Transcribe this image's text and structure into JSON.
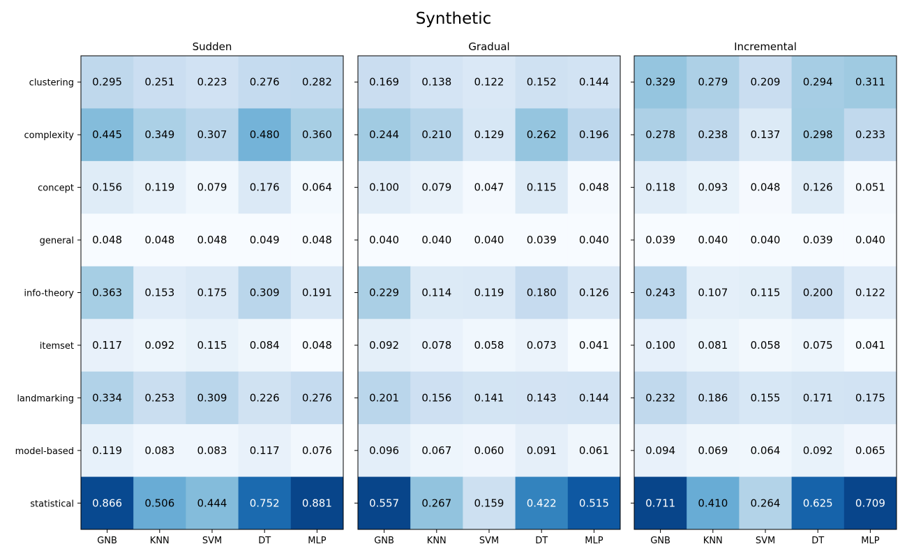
{
  "chart_data": {
    "type": "heatmap",
    "title": "Synthetic",
    "rows": [
      "clustering",
      "complexity",
      "concept",
      "general",
      "info-theory",
      "itemset",
      "landmarking",
      "model-based",
      "statistical"
    ],
    "columns": [
      "GNB",
      "KNN",
      "SVM",
      "DT",
      "MLP"
    ],
    "colormap": "Blues",
    "panels": [
      {
        "title": "Sudden",
        "values": [
          [
            0.295,
            0.251,
            0.223,
            0.276,
            0.282
          ],
          [
            0.445,
            0.349,
            0.307,
            0.48,
            0.36
          ],
          [
            0.156,
            0.119,
            0.079,
            0.176,
            0.064
          ],
          [
            0.048,
            0.048,
            0.048,
            0.049,
            0.048
          ],
          [
            0.363,
            0.153,
            0.175,
            0.309,
            0.191
          ],
          [
            0.117,
            0.092,
            0.115,
            0.084,
            0.048
          ],
          [
            0.334,
            0.253,
            0.309,
            0.226,
            0.276
          ],
          [
            0.119,
            0.083,
            0.083,
            0.117,
            0.076
          ],
          [
            0.866,
            0.506,
            0.444,
            0.752,
            0.881
          ]
        ]
      },
      {
        "title": "Gradual",
        "values": [
          [
            0.169,
            0.138,
            0.122,
            0.152,
            0.144
          ],
          [
            0.244,
            0.21,
            0.129,
            0.262,
            0.196
          ],
          [
            0.1,
            0.079,
            0.047,
            0.115,
            0.048
          ],
          [
            0.04,
            0.04,
            0.04,
            0.039,
            0.04
          ],
          [
            0.229,
            0.114,
            0.119,
            0.18,
            0.126
          ],
          [
            0.092,
            0.078,
            0.058,
            0.073,
            0.041
          ],
          [
            0.201,
            0.156,
            0.141,
            0.143,
            0.144
          ],
          [
            0.096,
            0.067,
            0.06,
            0.091,
            0.061
          ],
          [
            0.557,
            0.267,
            0.159,
            0.422,
            0.515
          ]
        ]
      },
      {
        "title": "Incremental",
        "values": [
          [
            0.329,
            0.279,
            0.209,
            0.294,
            0.311
          ],
          [
            0.278,
            0.238,
            0.137,
            0.298,
            0.233
          ],
          [
            0.118,
            0.093,
            0.048,
            0.126,
            0.051
          ],
          [
            0.039,
            0.04,
            0.04,
            0.039,
            0.04
          ],
          [
            0.243,
            0.107,
            0.115,
            0.2,
            0.122
          ],
          [
            0.1,
            0.081,
            0.058,
            0.075,
            0.041
          ],
          [
            0.232,
            0.186,
            0.155,
            0.171,
            0.175
          ],
          [
            0.094,
            0.069,
            0.064,
            0.092,
            0.065
          ],
          [
            0.711,
            0.41,
            0.264,
            0.625,
            0.709
          ]
        ]
      }
    ]
  }
}
